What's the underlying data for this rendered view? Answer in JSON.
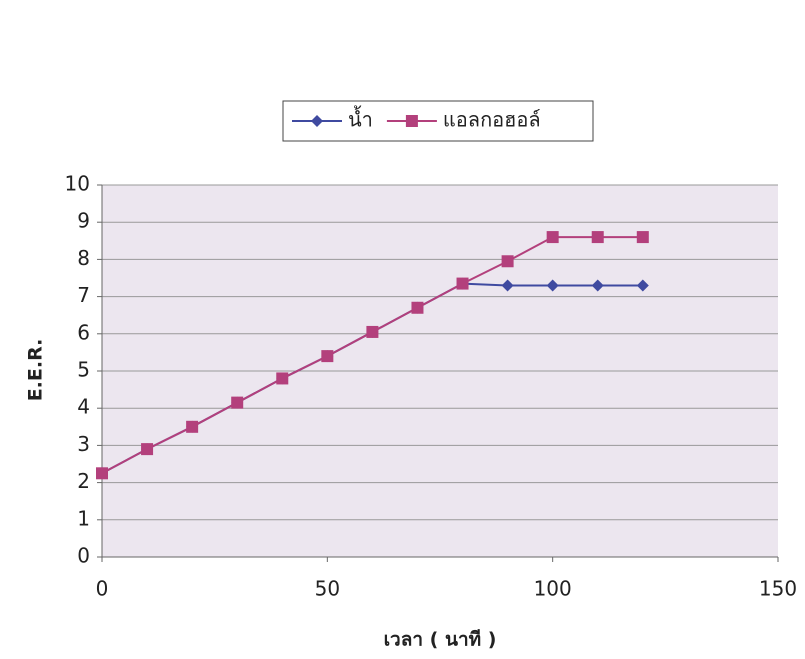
{
  "chart_data": {
    "type": "line",
    "x": [
      0,
      10,
      20,
      30,
      40,
      50,
      60,
      70,
      80,
      90,
      100,
      110,
      120
    ],
    "series": [
      {
        "name": "น้ำ",
        "color": "#3f4aa0",
        "marker": "diamond",
        "values": [
          2.25,
          2.9,
          3.5,
          4.15,
          4.8,
          5.4,
          6.05,
          6.7,
          7.35,
          7.3,
          7.3,
          7.3,
          7.3
        ]
      },
      {
        "name": "แอลกอฮอล์",
        "color": "#b3407c",
        "marker": "square",
        "values": [
          2.25,
          2.9,
          3.5,
          4.15,
          4.8,
          5.4,
          6.05,
          6.7,
          7.35,
          7.95,
          8.6,
          8.6,
          8.6
        ]
      }
    ],
    "xlim": [
      0,
      150
    ],
    "xticks": [
      0,
      50,
      100,
      150
    ],
    "ylim": [
      0,
      10
    ],
    "yticks": [
      0,
      1,
      2,
      3,
      4,
      5,
      6,
      7,
      8,
      9,
      10
    ],
    "grid": true,
    "xlabel": "เวลา ( นาที )",
    "ylabel": "E.E.R.",
    "legend": "top"
  }
}
